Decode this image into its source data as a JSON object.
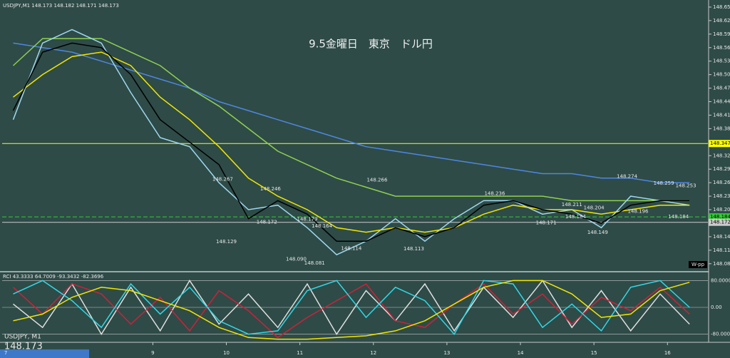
{
  "chart_data": {
    "type": "line",
    "title": "9.5金曜日　東京　ドル円",
    "header": "USDJPY,M1  148.173 148.182 148.171 148.173",
    "symbol": "USDJPY, M1",
    "last_price": "148.173",
    "corner_label": "W-pp",
    "x": [
      7.1,
      7.5,
      7.9,
      8.3,
      8.7,
      9.1,
      9.5,
      9.9,
      10.3,
      10.7,
      11.1,
      11.5,
      11.9,
      12.3,
      12.7,
      13.1,
      13.5,
      13.9,
      14.3,
      14.7,
      15.1,
      15.5,
      15.9,
      16.3
    ],
    "xlim": [
      6.95,
      16.55
    ],
    "xticks": [
      7,
      9,
      10,
      11,
      12,
      13,
      14,
      15,
      16
    ],
    "ylim": [
      148.067,
      148.661
    ],
    "yticks": [
      {
        "value": 148.65,
        "label": "148.650"
      },
      {
        "value": 148.62,
        "label": "148.620"
      },
      {
        "value": 148.59,
        "label": "148.590"
      },
      {
        "value": 148.56,
        "label": "148.560"
      },
      {
        "value": 148.53,
        "label": "148.530"
      },
      {
        "value": 148.5,
        "label": "148.500"
      },
      {
        "value": 148.47,
        "label": "148.470"
      },
      {
        "value": 148.44,
        "label": "148.440"
      },
      {
        "value": 148.41,
        "label": "148.410"
      },
      {
        "value": 148.38,
        "label": "148.380"
      },
      {
        "value": 148.35,
        "label": "148.350"
      },
      {
        "value": 148.32,
        "label": "148.320"
      },
      {
        "value": 148.29,
        "label": "148.290"
      },
      {
        "value": 148.26,
        "label": "148.260"
      },
      {
        "value": 148.23,
        "label": "148.230"
      },
      {
        "value": 148.2,
        "label": "148.200"
      },
      {
        "value": 148.17,
        "label": "148.170"
      },
      {
        "value": 148.14,
        "label": "148.140"
      },
      {
        "value": 148.11,
        "label": "148.110"
      },
      {
        "value": 148.08,
        "label": "148.080"
      }
    ],
    "series": [
      {
        "color": "#4f86e0",
        "values": [
          148.57,
          148.56,
          148.55,
          148.53,
          148.51,
          148.49,
          148.47,
          148.44,
          148.42,
          148.4,
          148.38,
          148.36,
          148.34,
          148.33,
          148.32,
          148.31,
          148.3,
          148.29,
          148.28,
          148.28,
          148.27,
          148.27,
          148.26,
          148.26
        ]
      },
      {
        "color": "#8fd14f",
        "values": [
          148.52,
          148.58,
          148.58,
          148.58,
          148.55,
          148.52,
          148.47,
          148.43,
          148.38,
          148.33,
          148.3,
          148.27,
          148.25,
          148.23,
          148.23,
          148.23,
          148.23,
          148.23,
          148.23,
          148.22,
          148.22,
          148.22,
          148.22,
          148.22
        ]
      },
      {
        "color": "#9fd8f0",
        "values": [
          148.4,
          148.57,
          148.6,
          148.57,
          148.46,
          148.36,
          148.34,
          148.26,
          148.2,
          148.21,
          148.16,
          148.1,
          148.13,
          148.18,
          148.13,
          148.18,
          148.22,
          148.22,
          148.19,
          148.2,
          148.16,
          148.23,
          148.22,
          148.21
        ]
      },
      {
        "color": "#f2e600",
        "values": [
          148.45,
          148.5,
          148.54,
          148.55,
          148.52,
          148.45,
          148.4,
          148.34,
          148.27,
          148.23,
          148.2,
          148.16,
          148.15,
          148.16,
          148.15,
          148.16,
          148.19,
          148.21,
          148.2,
          148.2,
          148.19,
          148.2,
          148.21,
          148.21
        ]
      },
      {
        "color": "#000000",
        "values": [
          148.42,
          148.55,
          148.57,
          148.56,
          148.5,
          148.4,
          148.35,
          148.3,
          148.18,
          148.22,
          148.19,
          148.13,
          148.13,
          148.16,
          148.14,
          148.16,
          148.21,
          148.22,
          148.2,
          148.19,
          148.17,
          148.21,
          148.22,
          148.22
        ]
      }
    ],
    "levels": [
      {
        "value": 148.347,
        "label": "148.347",
        "color": "#ffff00"
      },
      {
        "value": 148.184,
        "label": "148.184",
        "color": "#33cc33"
      },
      {
        "value": 148.172,
        "label": "148.172",
        "color": "#cccccc"
      }
    ],
    "annotations": [
      {
        "x": 9.95,
        "value": 148.267,
        "label": "148.267"
      },
      {
        "x": 10.6,
        "value": 148.246,
        "label": "148.246"
      },
      {
        "x": 10.0,
        "value": 148.129,
        "label": "148.129"
      },
      {
        "x": 10.55,
        "value": 148.172,
        "label": "148.172"
      },
      {
        "x": 11.1,
        "value": 148.179,
        "label": "148.179"
      },
      {
        "x": 11.3,
        "value": 148.164,
        "label": "148.164"
      },
      {
        "x": 12.05,
        "value": 148.266,
        "label": "148.266"
      },
      {
        "x": 11.7,
        "value": 148.114,
        "label": "148.114"
      },
      {
        "x": 12.55,
        "value": 148.113,
        "label": "148.113"
      },
      {
        "x": 10.95,
        "value": 148.09,
        "label": "148.090"
      },
      {
        "x": 11.2,
        "value": 148.081,
        "label": "148.081"
      },
      {
        "x": 13.65,
        "value": 148.236,
        "label": "148.236"
      },
      {
        "x": 14.7,
        "value": 148.211,
        "label": "148.211"
      },
      {
        "x": 15.0,
        "value": 148.204,
        "label": "148.204"
      },
      {
        "x": 14.35,
        "value": 148.171,
        "label": "148.171"
      },
      {
        "x": 14.75,
        "value": 148.184,
        "label": "148.184"
      },
      {
        "x": 15.05,
        "value": 148.149,
        "label": "148.149"
      },
      {
        "x": 15.45,
        "value": 148.274,
        "label": "148.274"
      },
      {
        "x": 15.95,
        "value": 148.259,
        "label": "148.259"
      },
      {
        "x": 16.25,
        "value": 148.253,
        "label": "148.253"
      },
      {
        "x": 15.6,
        "value": 148.196,
        "label": "148.196"
      },
      {
        "x": 16.15,
        "value": 148.184,
        "label": "148.184"
      }
    ],
    "indicator": {
      "header": "RCI 43.3333 64.7009 -93.3432 -82.3696",
      "ylim": [
        -100,
        100
      ],
      "yticks": [
        {
          "value": 80,
          "label": "80.0000"
        },
        {
          "value": 0,
          "label": "0.00"
        },
        {
          "value": -80,
          "label": "-80.0000"
        }
      ],
      "series": [
        {
          "color": "#e0e0e0",
          "values": [
            10,
            -60,
            70,
            -80,
            60,
            -70,
            80,
            -50,
            40,
            -60,
            70,
            -80,
            50,
            -40,
            70,
            -70,
            60,
            -30,
            80,
            -60,
            50,
            -70,
            40,
            -50
          ]
        },
        {
          "color": "#d0203a",
          "values": [
            60,
            -20,
            70,
            40,
            -50,
            30,
            -70,
            50,
            -10,
            -90,
            -30,
            20,
            70,
            -40,
            -60,
            10,
            70,
            -20,
            40,
            -50,
            30,
            -10,
            60,
            -20
          ]
        },
        {
          "color": "#30d8e8",
          "values": [
            40,
            80,
            20,
            -60,
            70,
            -20,
            60,
            -40,
            -80,
            -70,
            50,
            80,
            -30,
            60,
            20,
            -80,
            80,
            70,
            -60,
            10,
            -70,
            60,
            80,
            0
          ]
        },
        {
          "color": "#f2e600",
          "values": [
            -40,
            -20,
            30,
            60,
            50,
            20,
            -10,
            -60,
            -90,
            -95,
            -95,
            -90,
            -85,
            -70,
            -40,
            10,
            60,
            80,
            80,
            40,
            -30,
            -20,
            50,
            75
          ]
        }
      ]
    }
  }
}
